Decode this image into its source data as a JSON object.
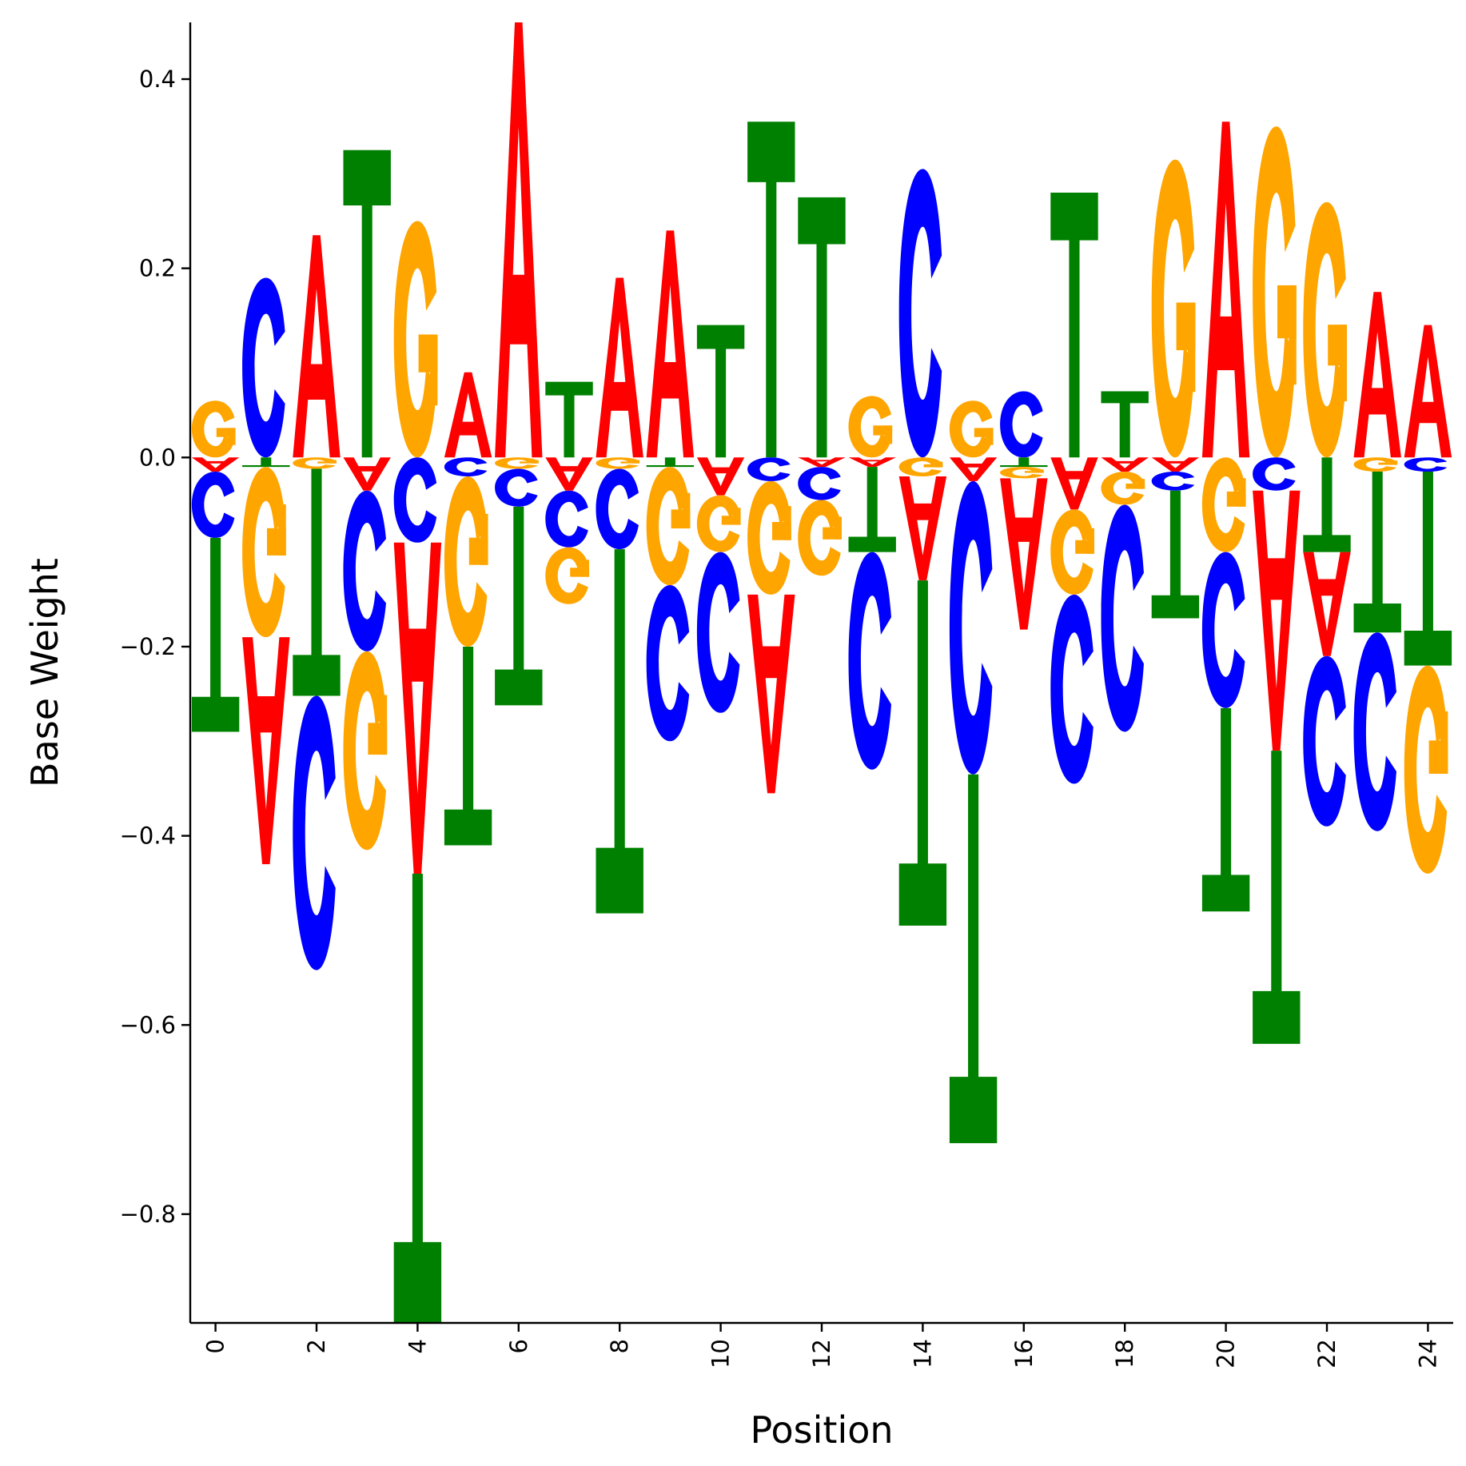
{
  "chart_data": {
    "type": "logo",
    "xlabel": "Position",
    "ylabel": "Base Weight",
    "xlim": [
      -0.5,
      24.5
    ],
    "ylim": [
      -0.915,
      0.46
    ],
    "x_ticks": [
      0,
      2,
      4,
      6,
      8,
      10,
      12,
      14,
      16,
      18,
      20,
      22,
      24
    ],
    "x_tick_labels": [
      "0",
      "2",
      "4",
      "6",
      "8",
      "10",
      "12",
      "14",
      "16",
      "18",
      "20",
      "22",
      "24"
    ],
    "y_ticks": [
      0.4,
      0.2,
      0.0,
      -0.2,
      -0.4,
      -0.6,
      -0.8
    ],
    "y_tick_labels": [
      "0.4",
      "0.2",
      "0.0",
      "−0.2",
      "−0.4",
      "−0.6",
      "−0.8"
    ],
    "grid": false,
    "colors": {
      "A": "#ff0000",
      "C": "#0000ff",
      "G": "#ffa500",
      "T": "#008000"
    },
    "positions": [
      {
        "x": 0,
        "A": -0.015,
        "C": -0.07,
        "G": 0.06,
        "T": -0.205
      },
      {
        "x": 1,
        "A": -0.24,
        "C": 0.19,
        "G": -0.18,
        "T": -0.01
      },
      {
        "x": 2,
        "A": 0.235,
        "C": -0.29,
        "G": -0.012,
        "T": -0.24
      },
      {
        "x": 3,
        "A": -0.035,
        "C": -0.17,
        "G": -0.21,
        "T": 0.325
      },
      {
        "x": 4,
        "A": -0.35,
        "C": -0.09,
        "G": 0.25,
        "T": -0.475
      },
      {
        "x": 5,
        "A": 0.09,
        "C": -0.02,
        "G": -0.18,
        "T": -0.21
      },
      {
        "x": 6,
        "A": 0.46,
        "C": -0.04,
        "G": -0.012,
        "T": -0.21
      },
      {
        "x": 7,
        "A": -0.035,
        "C": -0.06,
        "G": -0.06,
        "T": 0.08
      },
      {
        "x": 8,
        "A": 0.19,
        "C": -0.085,
        "G": -0.012,
        "T": -0.385
      },
      {
        "x": 9,
        "A": 0.24,
        "C": -0.165,
        "G": -0.125,
        "T": -0.01
      },
      {
        "x": 10,
        "A": -0.04,
        "C": -0.17,
        "G": -0.06,
        "T": 0.14
      },
      {
        "x": 11,
        "A": -0.21,
        "C": -0.025,
        "G": -0.12,
        "T": 0.355
      },
      {
        "x": 12,
        "A": -0.01,
        "C": -0.035,
        "G": -0.08,
        "T": 0.275
      },
      {
        "x": 13,
        "A": -0.01,
        "C": -0.23,
        "G": 0.065,
        "T": -0.09
      },
      {
        "x": 14,
        "A": -0.11,
        "C": 0.305,
        "G": -0.02,
        "T": -0.365
      },
      {
        "x": 15,
        "A": -0.025,
        "C": -0.31,
        "G": 0.06,
        "T": -0.39
      },
      {
        "x": 16,
        "A": -0.16,
        "C": 0.07,
        "G": -0.012,
        "T": -0.01
      },
      {
        "x": 17,
        "A": -0.055,
        "C": -0.2,
        "G": -0.09,
        "T": 0.28
      },
      {
        "x": 18,
        "A": -0.015,
        "C": -0.24,
        "G": -0.035,
        "T": 0.07
      },
      {
        "x": 19,
        "A": -0.015,
        "C": -0.02,
        "G": 0.315,
        "T": -0.135
      },
      {
        "x": 20,
        "A": 0.355,
        "C": -0.165,
        "G": -0.1,
        "T": -0.215
      },
      {
        "x": 21,
        "A": -0.275,
        "C": -0.035,
        "G": 0.35,
        "T": -0.31
      },
      {
        "x": 22,
        "A": -0.11,
        "C": -0.18,
        "G": 0.27,
        "T": -0.1
      },
      {
        "x": 23,
        "A": 0.175,
        "C": -0.21,
        "G": -0.015,
        "T": -0.17
      },
      {
        "x": 24,
        "A": 0.14,
        "C": -0.015,
        "G": -0.22,
        "T": -0.205
      }
    ]
  }
}
